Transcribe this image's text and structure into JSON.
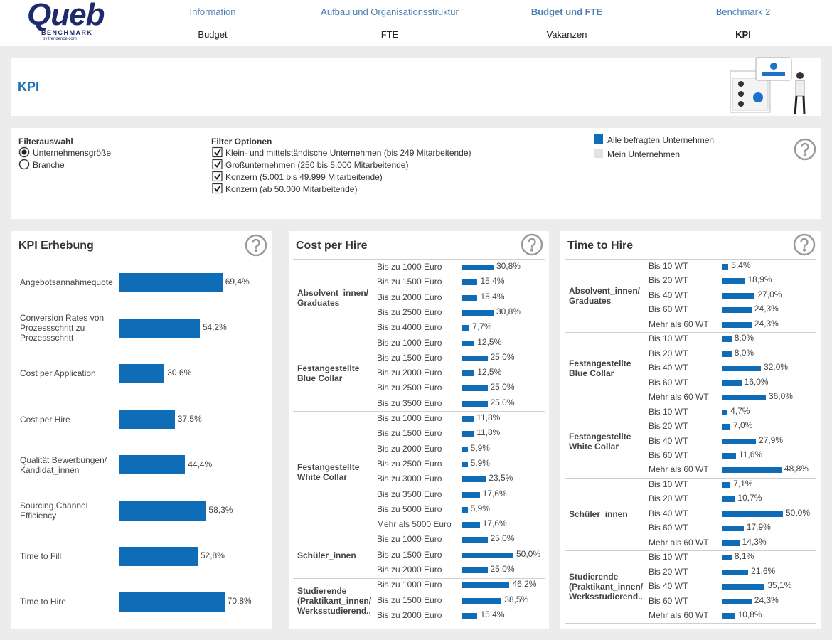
{
  "logo": {
    "name": "Queb",
    "subtitle": "BENCHMARK",
    "byline": "by trendence.com"
  },
  "nav": {
    "primary": [
      "Information",
      "Aufbau und Organisationsstruktur",
      "Budget und FTE",
      "Benchmark 2"
    ],
    "secondary": [
      "Budget",
      "FTE",
      "Vakanzen",
      "KPI"
    ]
  },
  "page_title": "KPI",
  "filters": {
    "selection_title": "Filterauswahl",
    "selection_options": [
      "Unternehmensgröße",
      "Branche"
    ],
    "options_title": "Filter Optionen",
    "options": [
      "Klein- und mittelständische Unternehmen (bis 249 Mitarbeitende)",
      "Großunternehmen (250 bis 5.000 Mitarbeitende)",
      "Konzern (5.001 bis 49.999 Mitarbeitende)",
      "Konzern (ab 50.000 Mitarbeitende)"
    ]
  },
  "legend": [
    {
      "label": "Alle befragten Unternehmen",
      "color": "#0f6cb6"
    },
    {
      "label": "Mein Unternehmen",
      "color": "#e3e3e3"
    }
  ],
  "chart_data": [
    {
      "type": "bar",
      "title": "KPI Erhebung",
      "color": "#0f6cb6",
      "categories": [
        "Angebotsannahmequote",
        "Conversion Rates von Prozessschritt zu Prozessschritt",
        "Cost per Application",
        "Cost per Hire",
        "Qualität Bewerbungen/ Kandidat_innen",
        "Sourcing Channel Efficiency",
        "Time to Fill",
        "Time to Hire"
      ],
      "values": [
        69.4,
        54.2,
        30.6,
        37.5,
        44.4,
        58.3,
        52.8,
        70.8
      ],
      "value_labels": [
        "69,4%",
        "54,2%",
        "30,6%",
        "37,5%",
        "44,4%",
        "58,3%",
        "52,8%",
        "70,8%"
      ]
    },
    {
      "type": "grouped-bar",
      "title": "Cost per Hire",
      "color": "#0f6cb6",
      "groups": [
        {
          "label": "Absolvent_innen/ Graduates",
          "categories": [
            "Bis zu 1000 Euro",
            "Bis zu 1500 Euro",
            "Bis zu 2000 Euro",
            "Bis zu 2500 Euro",
            "Bis zu 4000 Euro"
          ],
          "values": [
            30.8,
            15.4,
            15.4,
            30.8,
            7.7
          ],
          "value_labels": [
            "30,8%",
            "15,4%",
            "15,4%",
            "30,8%",
            "7,7%"
          ]
        },
        {
          "label": "Festangestellte Blue Collar",
          "categories": [
            "Bis zu 1000 Euro",
            "Bis zu 1500 Euro",
            "Bis zu 2000 Euro",
            "Bis zu 2500 Euro",
            "Bis zu 3500 Euro"
          ],
          "values": [
            12.5,
            25,
            12.5,
            25,
            25
          ],
          "value_labels": [
            "12,5%",
            "25,0%",
            "12,5%",
            "25,0%",
            "25,0%"
          ]
        },
        {
          "label": "Festangestellte White Collar",
          "categories": [
            "Bis zu 1000 Euro",
            "Bis zu 1500 Euro",
            "Bis zu 2000 Euro",
            "Bis zu 2500 Euro",
            "Bis zu 3000 Euro",
            "Bis zu 3500 Euro",
            "Bis zu 5000 Euro",
            "Mehr als 5000 Euro"
          ],
          "values": [
            11.8,
            11.8,
            5.9,
            5.9,
            23.5,
            17.6,
            5.9,
            17.6
          ],
          "value_labels": [
            "11,8%",
            "11,8%",
            "5,9%",
            "5,9%",
            "23,5%",
            "17,6%",
            "5,9%",
            "17,6%"
          ]
        },
        {
          "label": "Schüler_innen",
          "categories": [
            "Bis zu 1000 Euro",
            "Bis zu 1500 Euro",
            "Bis zu 2000 Euro"
          ],
          "values": [
            25,
            50,
            25
          ],
          "value_labels": [
            "25,0%",
            "50,0%",
            "25,0%"
          ]
        },
        {
          "label": "Studierende (Praktikant_innen/ Werksstudierend..",
          "categories": [
            "Bis zu 1000 Euro",
            "Bis zu 1500 Euro",
            "Bis zu 2000 Euro"
          ],
          "values": [
            46.2,
            38.5,
            15.4
          ],
          "value_labels": [
            "46,2%",
            "38,5%",
            "15,4%"
          ]
        }
      ]
    },
    {
      "type": "grouped-bar",
      "title": "Time to Hire",
      "color": "#0f6cb6",
      "groups": [
        {
          "label": "Absolvent_innen/ Graduates",
          "categories": [
            "Bis 10 WT",
            "Bis 20 WT",
            "Bis 40 WT",
            "Bis 60 WT",
            "Mehr als 60 WT"
          ],
          "values": [
            5.4,
            18.9,
            27,
            24.3,
            24.3
          ],
          "value_labels": [
            "5,4%",
            "18,9%",
            "27,0%",
            "24,3%",
            "24,3%"
          ]
        },
        {
          "label": "Festangestellte Blue Collar",
          "categories": [
            "Bis 10 WT",
            "Bis 20 WT",
            "Bis 40 WT",
            "Bis 60 WT",
            "Mehr als 60 WT"
          ],
          "values": [
            8,
            8,
            32,
            16,
            36
          ],
          "value_labels": [
            "8,0%",
            "8,0%",
            "32,0%",
            "16,0%",
            "36,0%"
          ]
        },
        {
          "label": "Festangestellte White Collar",
          "categories": [
            "Bis 10 WT",
            "Bis 20 WT",
            "Bis 40 WT",
            "Bis 60 WT",
            "Mehr als 60 WT"
          ],
          "values": [
            4.7,
            7,
            27.9,
            11.6,
            48.8
          ],
          "value_labels": [
            "4,7%",
            "7,0%",
            "27,9%",
            "11,6%",
            "48,8%"
          ]
        },
        {
          "label": "Schüler_innen",
          "categories": [
            "Bis 10 WT",
            "Bis 20 WT",
            "Bis 40 WT",
            "Bis 60 WT",
            "Mehr als 60 WT"
          ],
          "values": [
            7.1,
            10.7,
            50,
            17.9,
            14.3
          ],
          "value_labels": [
            "7,1%",
            "10,7%",
            "50,0%",
            "17,9%",
            "14,3%"
          ]
        },
        {
          "label": "Studierende (Praktikant_innen/ Werksstudierend..",
          "categories": [
            "Bis 10 WT",
            "Bis 20 WT",
            "Bis 40 WT",
            "Bis 60 WT",
            "Mehr als 60 WT"
          ],
          "values": [
            8.1,
            21.6,
            35.1,
            24.3,
            10.8
          ],
          "value_labels": [
            "8,1%",
            "21,6%",
            "35,1%",
            "24,3%",
            "10,8%"
          ]
        }
      ]
    }
  ]
}
